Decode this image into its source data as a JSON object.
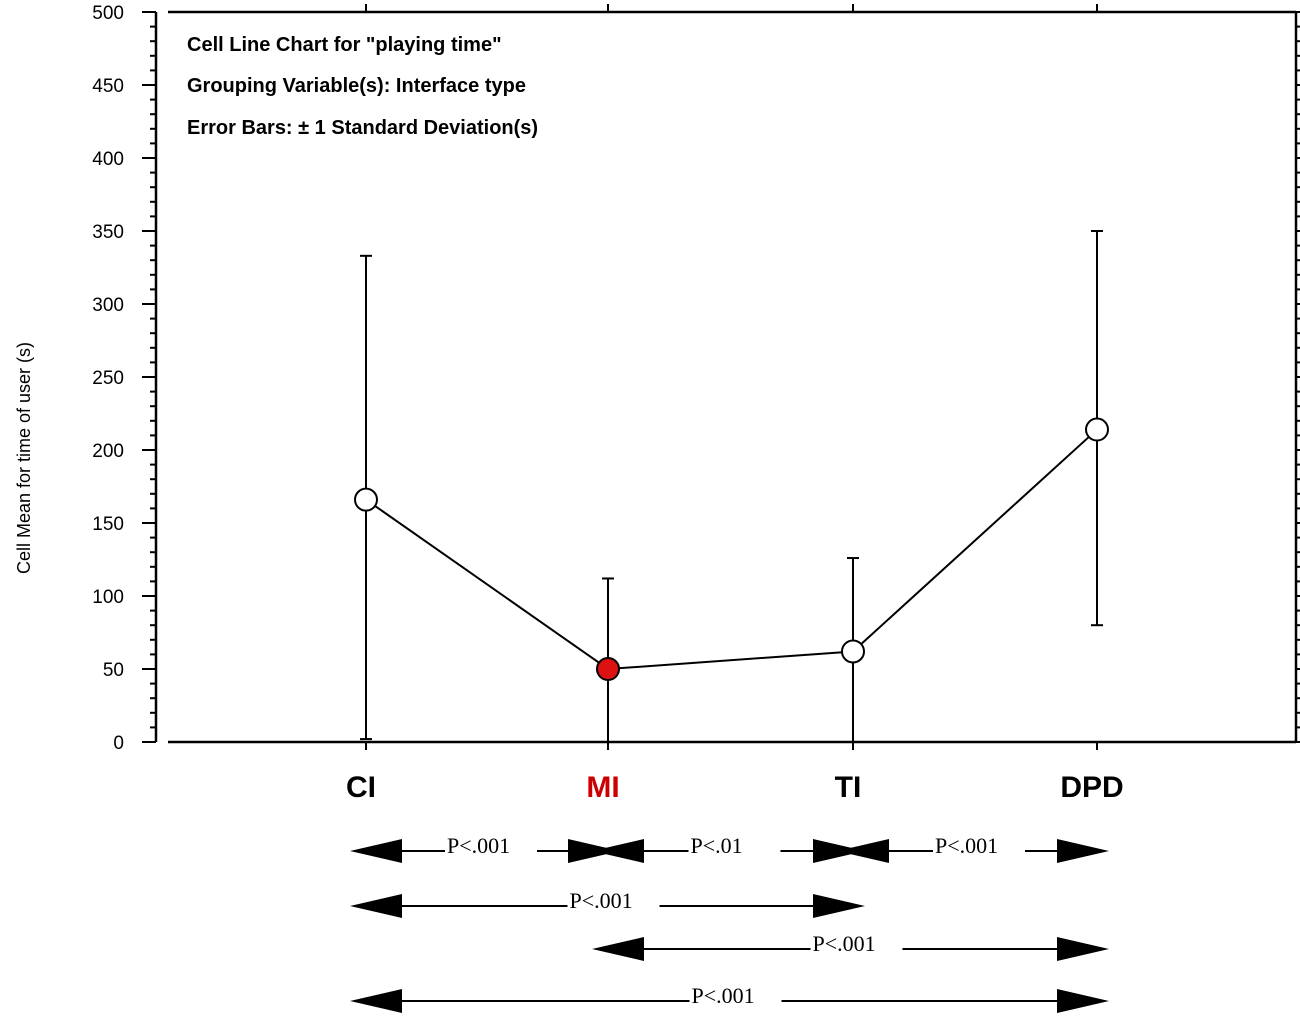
{
  "chart_data": {
    "type": "line",
    "title_lines": [
      "Cell Line Chart for \"playing time\"",
      "Grouping Variable(s): Interface type",
      "Error Bars: ± 1 Standard Deviation(s)"
    ],
    "ylabel": "Cell Mean for time of user (s)",
    "xlabel": "",
    "ylim": [
      0,
      500
    ],
    "y_ticks": [
      0,
      50,
      100,
      150,
      200,
      250,
      300,
      350,
      400,
      450,
      500
    ],
    "y_tick_labels": [
      "0",
      "50",
      "100",
      "150",
      "200",
      "250",
      "300",
      "350",
      "400",
      "450",
      "500"
    ],
    "grid": false,
    "categories": [
      "CI",
      "MI",
      "TI",
      "DPD"
    ],
    "category_colors": [
      "#000000",
      "#cc0000",
      "#000000",
      "#000000"
    ],
    "series": [
      {
        "values": [
          166,
          50,
          62,
          214
        ],
        "error_low": [
          2,
          0,
          0,
          80
        ],
        "error_high": [
          333,
          112,
          126,
          350
        ],
        "marker_fill": [
          "#ffffff",
          "#dd1111",
          "#ffffff",
          "#ffffff"
        ]
      }
    ],
    "comparisons": [
      {
        "from": "CI",
        "to": "MI",
        "label": "P<.001",
        "row": 0
      },
      {
        "from": "MI",
        "to": "TI",
        "label": "P<.01",
        "row": 0
      },
      {
        "from": "TI",
        "to": "DPD",
        "label": "P<.001",
        "row": 0
      },
      {
        "from": "CI",
        "to": "TI",
        "label": "P<.001",
        "row": 1
      },
      {
        "from": "MI",
        "to": "DPD",
        "label": "P<.001",
        "row": 2
      },
      {
        "from": "CI",
        "to": "DPD",
        "label": "P<.001",
        "row": 3
      }
    ]
  }
}
